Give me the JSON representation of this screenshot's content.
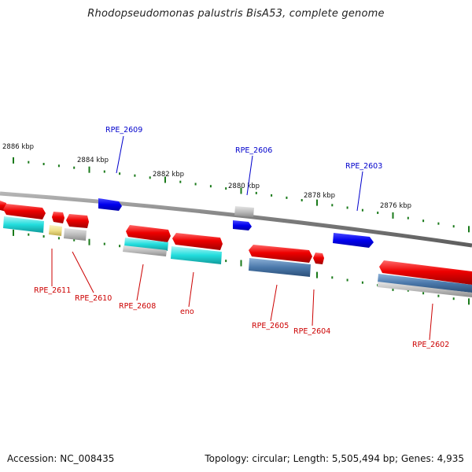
{
  "title": "Rhodopseudomonas palustris BisA53, complete genome",
  "footer": {
    "accession": "Accession: NC_008435",
    "summary": "Topology: circular; Length: 5,505,494 bp; Genes: 4,935"
  },
  "colors": {
    "backbone": "#8a8a8a",
    "tick": "#1a7a1a",
    "label_forward": "#0000cc",
    "label_reverse": "#cc0000",
    "gene_red": "#ee0000",
    "gene_blue": "#0000ee",
    "gene_cyan": "#22dddd",
    "gene_gray": "#c0c0c0",
    "gene_yellow": "#eee08a",
    "gene_steel": "#4a78aa"
  },
  "kbp_labels": [
    "2886 kbp",
    "2884 kbp",
    "2882 kbp",
    "2880 kbp",
    "2878 kbp",
    "2876 kbp"
  ],
  "forward_genes": [
    {
      "label": "RPE_2609",
      "color": "blue"
    },
    {
      "label": "RPE_2606",
      "color": "blue"
    },
    {
      "label": "RPE_2603",
      "color": "blue"
    }
  ],
  "reverse_genes": [
    {
      "label": "RPE_2611",
      "color": "red"
    },
    {
      "label": "RPE_2610",
      "color": "red"
    },
    {
      "label": "RPE_2608",
      "color": "red"
    },
    {
      "label": "eno",
      "color": "red"
    },
    {
      "label": "RPE_2605",
      "color": "red"
    },
    {
      "label": "RPE_2604",
      "color": "red"
    },
    {
      "label": "RPE_2602",
      "color": "red"
    }
  ]
}
